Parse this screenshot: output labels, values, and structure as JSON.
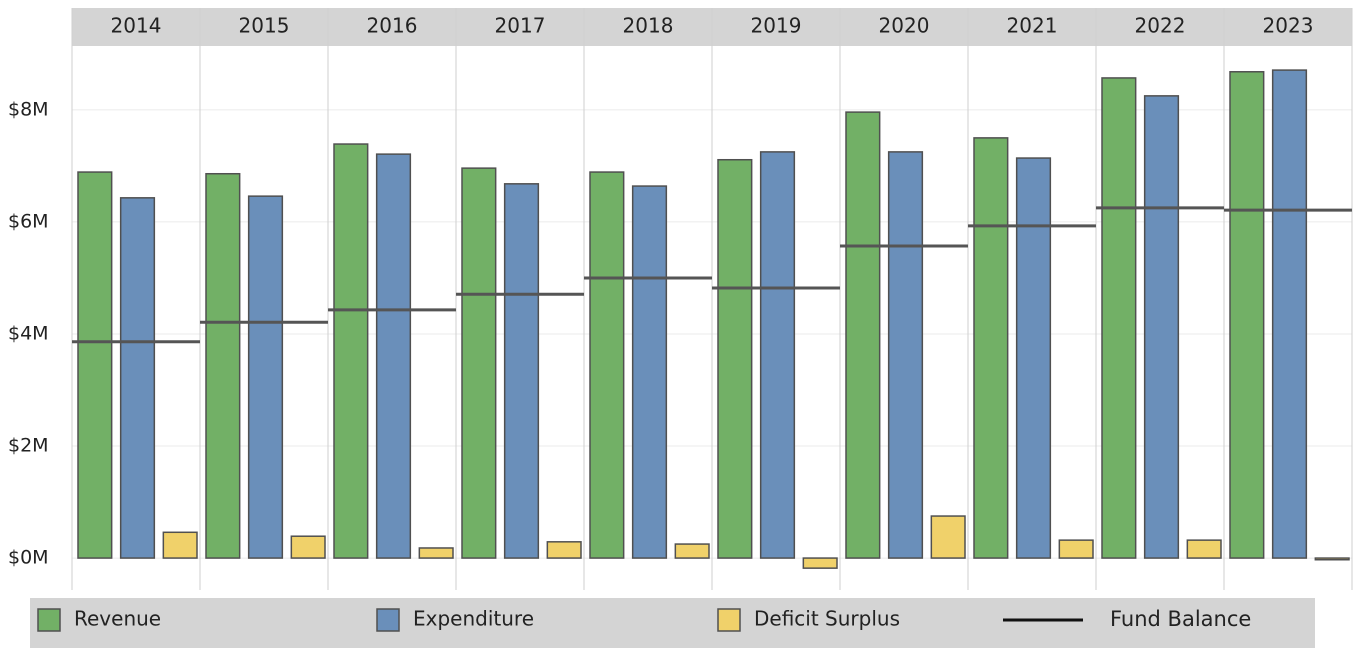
{
  "chart_data": {
    "type": "bar",
    "categories": [
      "2014",
      "2015",
      "2016",
      "2017",
      "2018",
      "2019",
      "2020",
      "2021",
      "2022",
      "2023"
    ],
    "series": [
      {
        "name": "Revenue",
        "type": "bar",
        "color": "#72b066",
        "values": [
          6.89,
          6.86,
          7.39,
          6.96,
          6.89,
          7.11,
          7.96,
          7.5,
          8.57,
          8.68
        ]
      },
      {
        "name": "Expenditure",
        "type": "bar",
        "color": "#6a8fba",
        "values": [
          6.43,
          6.46,
          7.21,
          6.68,
          6.64,
          7.25,
          7.25,
          7.14,
          8.25,
          8.71
        ]
      },
      {
        "name": "Deficit Surplus",
        "type": "bar",
        "color": "#f0d16a",
        "values": [
          0.46,
          0.39,
          0.18,
          0.29,
          0.25,
          -0.18,
          0.75,
          0.32,
          0.32,
          -0.03
        ]
      },
      {
        "name": "Fund Balance",
        "type": "line",
        "color": "#555555",
        "values": [
          3.86,
          4.21,
          4.43,
          4.71,
          5.0,
          4.82,
          5.57,
          5.93,
          6.25,
          6.21
        ]
      }
    ],
    "ylim": [
      -0.57,
      9.14
    ],
    "yticks": [
      {
        "value": 0,
        "label": "$0M"
      },
      {
        "value": 2,
        "label": "$2M"
      },
      {
        "value": 4,
        "label": "$4M"
      },
      {
        "value": 6,
        "label": "$6M"
      },
      {
        "value": 8,
        "label": "$8M"
      }
    ],
    "grid": true,
    "legend": "bottom"
  }
}
